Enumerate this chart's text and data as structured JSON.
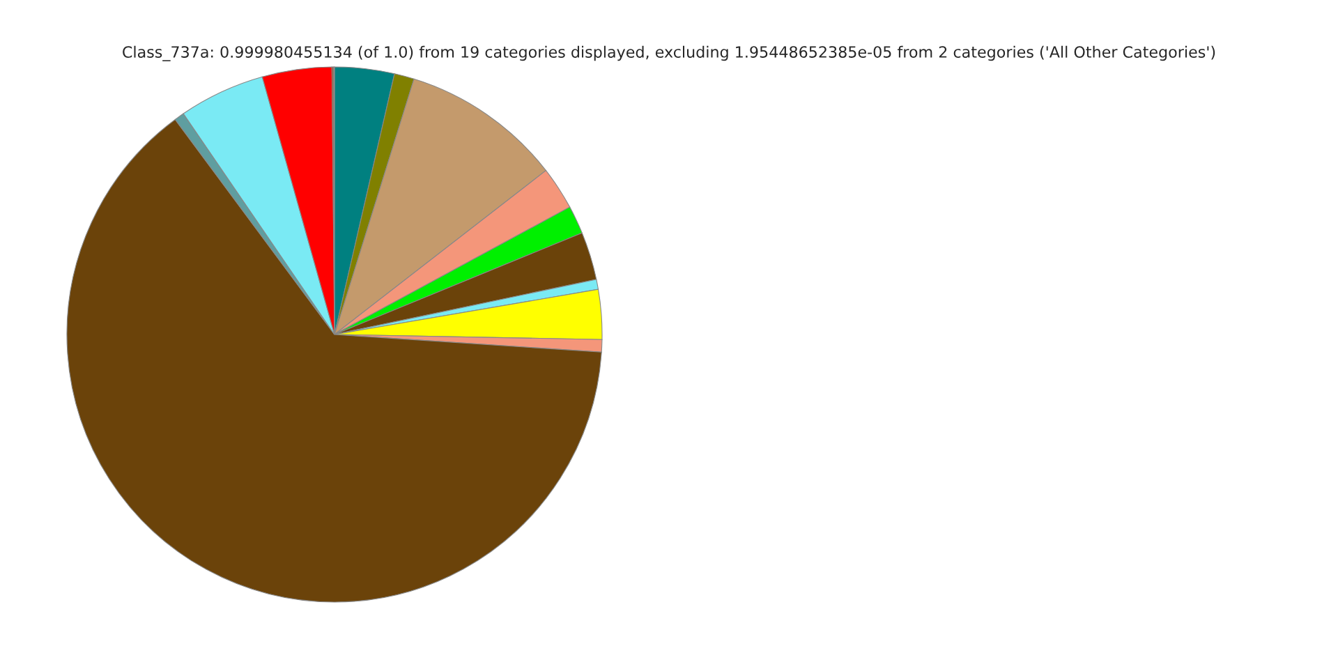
{
  "chart_data": {
    "type": "pie",
    "title": "Class_737a: 0.999980455134 (of 1.0) from 19 categories displayed, excluding 1.95448652385e-05 from 2 categories ('All Other Categories')",
    "categories": [
      null,
      null,
      null,
      null,
      null,
      null,
      null,
      null,
      null,
      null,
      null,
      null,
      null,
      null,
      null
    ],
    "values": [
      3.6,
      1.2,
      9.7,
      2.6,
      1.7,
      2.9,
      0.6,
      3.0,
      0.75,
      63.8,
      0.6,
      5.2,
      4.2,
      0.1,
      0.05
    ],
    "colors": [
      "#008080",
      "#808000",
      "#c49a6c",
      "#f4967a",
      "#00f000",
      "#6b430a",
      "#7aeaf4",
      "#ffff00",
      "#f4967a",
      "#6b430a",
      "#5f9ea0",
      "#7aeaf4",
      "#ff0000",
      "#a0522d",
      "#808080"
    ]
  }
}
